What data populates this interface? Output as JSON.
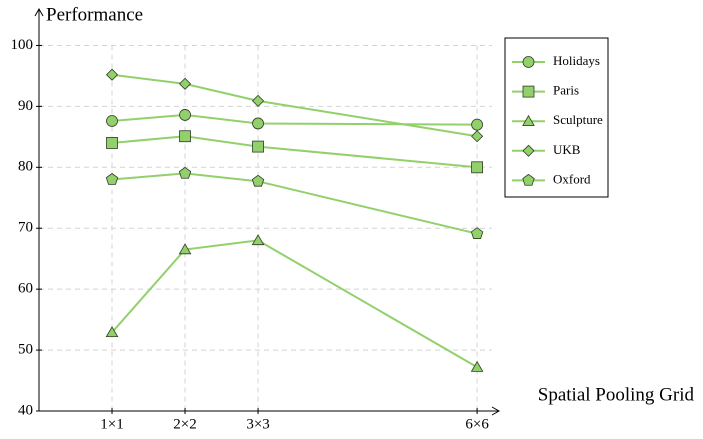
{
  "chart_data": {
    "type": "line",
    "x_label": "Spatial Pooling Grid",
    "y_label": "Performance",
    "x": [
      1,
      2,
      3,
      6
    ],
    "xlim": [
      0,
      6.3
    ],
    "xticks": [
      {
        "value": 1,
        "label": "1×1"
      },
      {
        "value": 2,
        "label": "2×2"
      },
      {
        "value": 3,
        "label": "3×3"
      },
      {
        "value": 6,
        "label": "6×6"
      }
    ],
    "ylim": [
      40,
      105
    ],
    "yticks": [
      40,
      50,
      60,
      70,
      80,
      90,
      100
    ],
    "grid": true,
    "legend": "right",
    "series": [
      {
        "name": "Holidays",
        "color": "#92d06b",
        "marker": "circle",
        "values": [
          87.6,
          88.6,
          87.2,
          87.0
        ]
      },
      {
        "name": "Paris",
        "color": "#92d06b",
        "marker": "square",
        "values": [
          84.0,
          85.1,
          83.4,
          80.0
        ]
      },
      {
        "name": "Sculpture",
        "color": "#92d06b",
        "marker": "triangle",
        "values": [
          52.9,
          66.5,
          68.0,
          47.2
        ]
      },
      {
        "name": "UKB",
        "color": "#92d06b",
        "marker": "diamond",
        "values": [
          95.2,
          93.7,
          90.9,
          85.1
        ]
      },
      {
        "name": "Oxford",
        "color": "#92d06b",
        "marker": "pentagon",
        "values": [
          78.0,
          79.0,
          77.7,
          69.1
        ]
      }
    ]
  }
}
